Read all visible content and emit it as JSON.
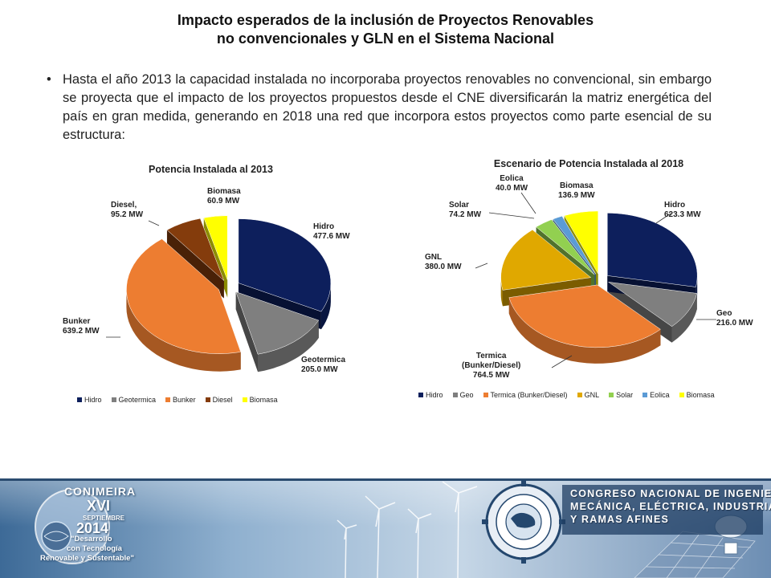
{
  "header": {
    "title_line1": "Impacto  esperados de la inclusión de Proyectos Renovables",
    "title_line2": "no convencionales y GLN en el Sistema Nacional"
  },
  "bullet": {
    "marker": "•",
    "text": "Hasta el año 2013 la capacidad instalada no incorporaba proyectos renovables no convencional, sin embargo se proyecta que el impacto de los proyectos propuestos desde el CNE diversificarán la matriz energética del país en gran medida, generando en 2018 una red que incorpora estos proyectos como parte esencial de su estructura:"
  },
  "colors": {
    "hidro": "#0d1f5c",
    "geo": "#7f7f7f",
    "bunker": "#ed7d31",
    "diesel": "#843c0c",
    "biomasa": "#ffff00",
    "gnl": "#e0a800",
    "solar": "#92d050",
    "eolica": "#5b9bd5"
  },
  "chart_data": [
    {
      "type": "pie",
      "title": "Potencia Instalada al 2013",
      "unit": "MW",
      "legend_position": "bottom",
      "slices": [
        {
          "name": "Hidro",
          "value": 477.6,
          "label": "Hidro\n477.6 MW",
          "color": "#0d1f5c"
        },
        {
          "name": "Geotermica",
          "value": 205.0,
          "label": "Geotermica\n205.0 MW",
          "color": "#7f7f7f"
        },
        {
          "name": "Bunker",
          "value": 639.2,
          "label": "Bunker\n639.2 MW",
          "color": "#ed7d31"
        },
        {
          "name": "Diesel",
          "value": 95.2,
          "label": "Diesel,\n95.2 MW",
          "color": "#843c0c"
        },
        {
          "name": "Biomasa",
          "value": 60.9,
          "label": "Biomasa\n60.9 MW",
          "color": "#ffff00"
        }
      ]
    },
    {
      "type": "pie",
      "title": "Escenario de Potencia Instalada al 2018",
      "unit": "MW",
      "legend_position": "bottom",
      "slices": [
        {
          "name": "Hidro",
          "value": 623.3,
          "label": "Hidro\n623.3 MW",
          "color": "#0d1f5c"
        },
        {
          "name": "Geo",
          "value": 216.0,
          "label": "Geo\n216.0 MW",
          "color": "#7f7f7f"
        },
        {
          "name": "Termica (Bunker/Diesel)",
          "value": 764.5,
          "label": "Termica\n(Bunker/Diesel)\n764.5 MW",
          "color": "#ed7d31"
        },
        {
          "name": "GNL",
          "value": 380.0,
          "label": "GNL\n380.0 MW",
          "color": "#e0a800"
        },
        {
          "name": "Solar",
          "value": 74.2,
          "label": "Solar\n74.2 MW",
          "color": "#92d050"
        },
        {
          "name": "Eolica",
          "value": 40.0,
          "label": "Eolica\n40.0 MW",
          "color": "#5b9bd5"
        },
        {
          "name": "Biomasa",
          "value": 136.9,
          "label": "Biomasa\n136.9 MW",
          "color": "#ffff00"
        }
      ]
    }
  ],
  "footer": {
    "left_title": "CONIMEIRA",
    "left_numeral": "XVI",
    "left_month": "SEPTIEMBRE",
    "left_year": "2014",
    "left_slogan_1": "\"Desarrollo",
    "left_slogan_2": "con Tecnología",
    "left_slogan_3": "Renovable y Sustentable\"",
    "logo_ring_text": "CONIMEIRA",
    "congreso_line1": "CONGRESO NACIONAL DE INGENIERÍA",
    "congreso_line2": "MECÁNICA, ELÉCTRICA, INDUSTRIAL",
    "congreso_line3": "Y RAMAS AFINES"
  }
}
